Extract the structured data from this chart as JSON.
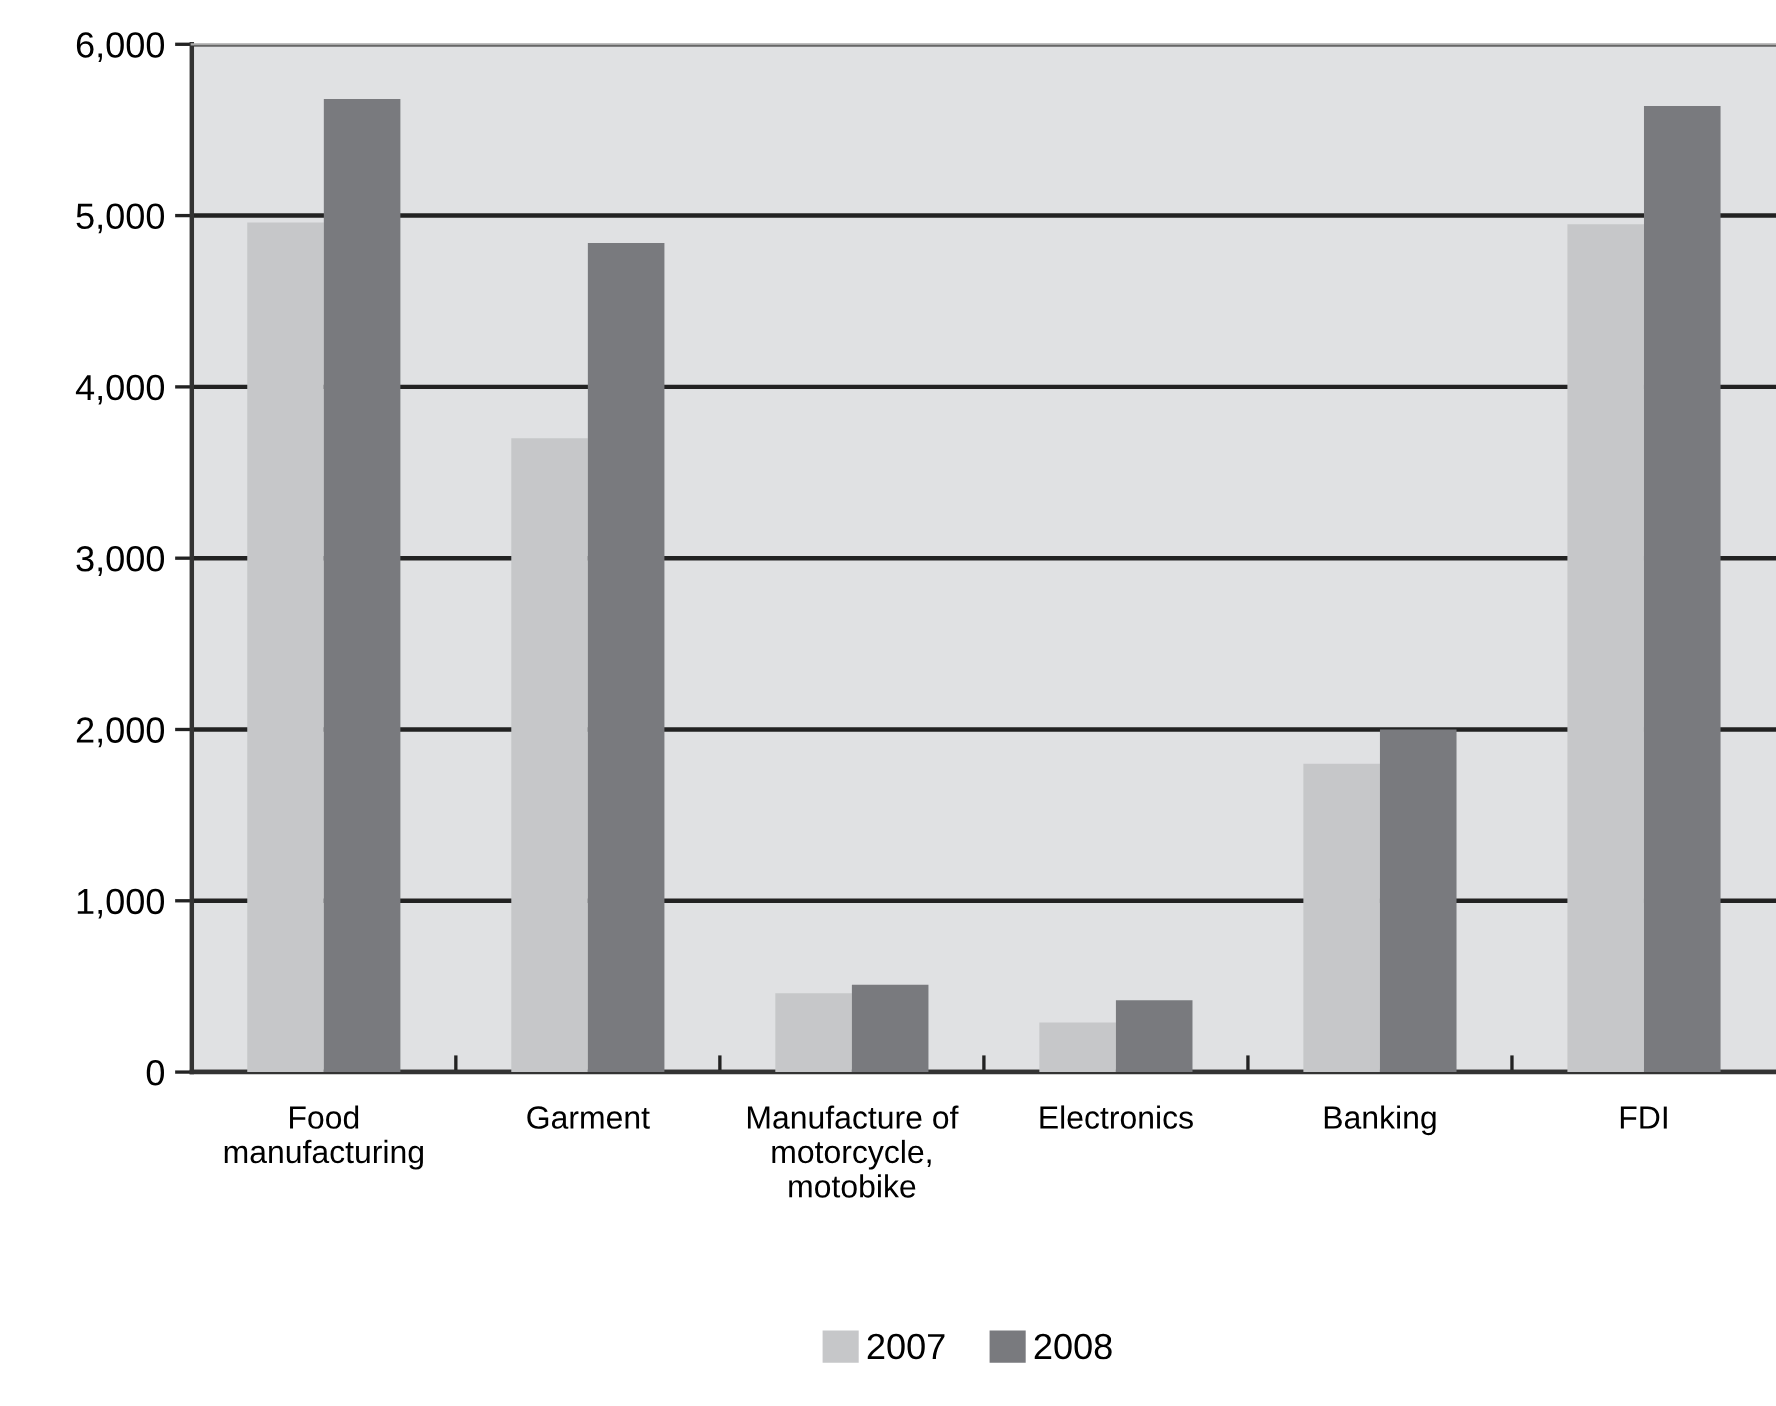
{
  "chart_data": {
    "type": "bar",
    "categories": [
      "Food\nmanufacturing",
      "Garment",
      "Manufacture of\nmotorcycle,\nmotobike",
      "Electronics",
      "Banking",
      "FDI"
    ],
    "series": [
      {
        "name": "2007",
        "color": "#c6c7c9",
        "values": [
          4960,
          3700,
          460,
          290,
          1800,
          4950
        ]
      },
      {
        "name": "2008",
        "color": "#797a7e",
        "values": [
          5680,
          4840,
          510,
          420,
          2000,
          5640
        ]
      }
    ],
    "ylim": [
      0,
      6000
    ],
    "yticks": [
      {
        "value": 0,
        "label": "0"
      },
      {
        "value": 1000,
        "label": "1,000"
      },
      {
        "value": 2000,
        "label": "2,000"
      },
      {
        "value": 3000,
        "label": "3,000"
      },
      {
        "value": 4000,
        "label": "4,000"
      },
      {
        "value": 5000,
        "label": "5,000"
      },
      {
        "value": 6000,
        "label": "6,000"
      }
    ],
    "grid": "y",
    "legend": "bottom"
  }
}
